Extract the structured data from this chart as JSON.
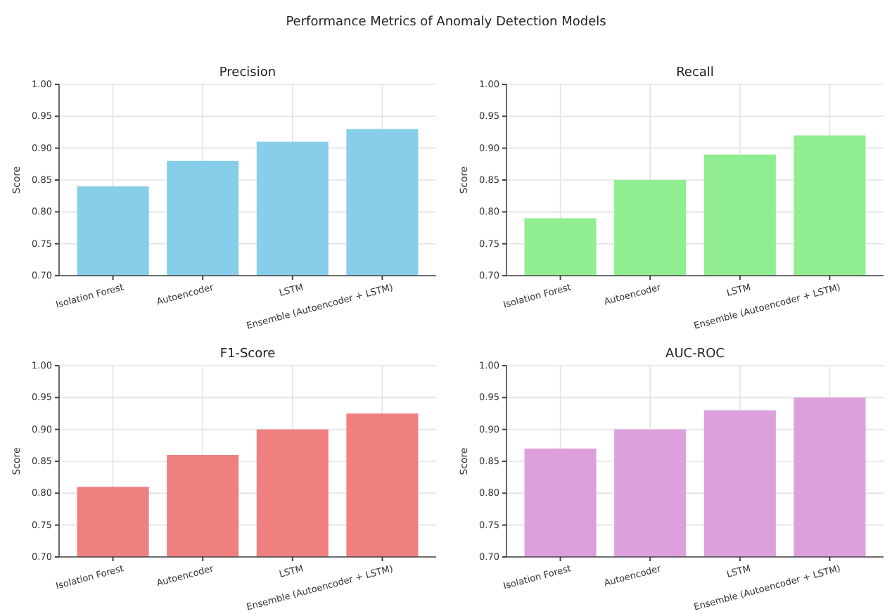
{
  "chart_data": [
    {
      "type": "bar",
      "title": "Precision",
      "ylabel": "Score",
      "annotations": [
        "Performance Metrics of Anomaly Detection Models"
      ],
      "categories": [
        "Isolation Forest",
        "Autoencoder",
        "LSTM",
        "Ensemble (Autoencoder + LSTM)"
      ],
      "values": [
        0.84,
        0.88,
        0.91,
        0.93
      ],
      "color": "#87ceeb",
      "ylim": [
        0.7,
        1.0
      ],
      "yticks": [
        {
          "value": 0.7,
          "label": "0.70"
        },
        {
          "value": 0.75,
          "label": "0.75"
        },
        {
          "value": 0.8,
          "label": "0.80"
        },
        {
          "value": 0.85,
          "label": "0.85"
        },
        {
          "value": 0.9,
          "label": "0.90"
        },
        {
          "value": 0.95,
          "label": "0.95"
        },
        {
          "value": 1.0,
          "label": "1.00"
        }
      ],
      "grid": true
    },
    {
      "type": "bar",
      "title": "Recall",
      "ylabel": "Score",
      "categories": [
        "Isolation Forest",
        "Autoencoder",
        "LSTM",
        "Ensemble (Autoencoder + LSTM)"
      ],
      "values": [
        0.79,
        0.85,
        0.89,
        0.92
      ],
      "color": "#90ee90",
      "ylim": [
        0.7,
        1.0
      ],
      "yticks": [
        {
          "value": 0.7,
          "label": "0.70"
        },
        {
          "value": 0.75,
          "label": "0.75"
        },
        {
          "value": 0.8,
          "label": "0.80"
        },
        {
          "value": 0.85,
          "label": "0.85"
        },
        {
          "value": 0.9,
          "label": "0.90"
        },
        {
          "value": 0.95,
          "label": "0.95"
        },
        {
          "value": 1.0,
          "label": "1.00"
        }
      ],
      "grid": true
    },
    {
      "type": "bar",
      "title": "F1-Score",
      "ylabel": "Score",
      "categories": [
        "Isolation Forest",
        "Autoencoder",
        "LSTM",
        "Ensemble (Autoencoder + LSTM)"
      ],
      "values": [
        0.81,
        0.86,
        0.9,
        0.925
      ],
      "color": "#f08080",
      "ylim": [
        0.7,
        1.0
      ],
      "yticks": [
        {
          "value": 0.7,
          "label": "0.70"
        },
        {
          "value": 0.75,
          "label": "0.75"
        },
        {
          "value": 0.8,
          "label": "0.80"
        },
        {
          "value": 0.85,
          "label": "0.85"
        },
        {
          "value": 0.9,
          "label": "0.90"
        },
        {
          "value": 0.95,
          "label": "0.95"
        },
        {
          "value": 1.0,
          "label": "1.00"
        }
      ],
      "grid": true
    },
    {
      "type": "bar",
      "title": "AUC-ROC",
      "ylabel": "Score",
      "categories": [
        "Isolation Forest",
        "Autoencoder",
        "LSTM",
        "Ensemble (Autoencoder + LSTM)"
      ],
      "values": [
        0.87,
        0.9,
        0.93,
        0.95
      ],
      "color": "#dda0dd",
      "ylim": [
        0.7,
        1.0
      ],
      "yticks": [
        {
          "value": 0.7,
          "label": "0.70"
        },
        {
          "value": 0.75,
          "label": "0.75"
        },
        {
          "value": 0.8,
          "label": "0.80"
        },
        {
          "value": 0.85,
          "label": "0.85"
        },
        {
          "value": 0.9,
          "label": "0.90"
        },
        {
          "value": 0.95,
          "label": "0.95"
        },
        {
          "value": 1.0,
          "label": "1.00"
        }
      ],
      "grid": true
    }
  ]
}
